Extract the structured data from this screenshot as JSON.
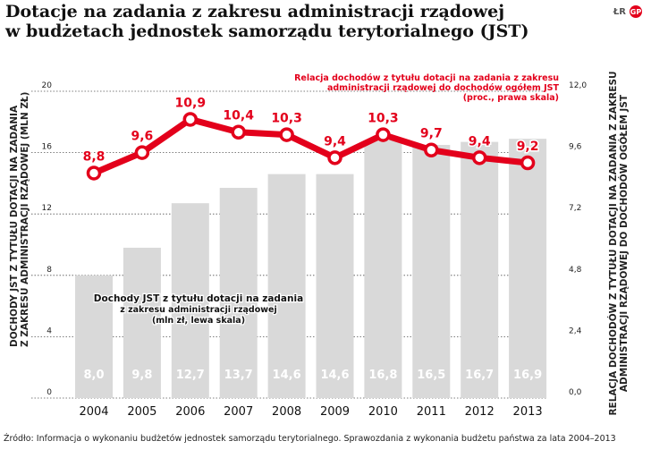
{
  "title_line1": "Dotacje na zadania z zakresu administracji rządowej",
  "title_line2": "w budżetach jednostek samorządu terytorialnego (JST)",
  "logo": {
    "text": "ŁR",
    "mark": "GP"
  },
  "source": "Źródło: Informacja o wykonaniu budżetów jednostek samorządu terytorialnego. Sprawozdania z wykonania budżetu państwa za lata 2004–2013",
  "left_axis_label": {
    "line1": "Dochody JST z tytułu dotacji na zadania",
    "line2": "z zakresu administracji rządowej (mln zł)"
  },
  "right_axis_label": {
    "line1": "Relacja dochodów z tytułu dotacji na zadania z zakresu",
    "line2": "administracji rządowej do dochodów ogółem JST"
  },
  "chart_data": {
    "type": "bar",
    "categories": [
      "2004",
      "2005",
      "2006",
      "2007",
      "2008",
      "2009",
      "2010",
      "2011",
      "2012",
      "2013"
    ],
    "left_ylim": [
      0,
      20
    ],
    "left_ticks": [
      "0",
      "4",
      "8",
      "12",
      "16",
      "20"
    ],
    "right_ylim": [
      0,
      12
    ],
    "right_ticks": [
      "0,0",
      "2,4",
      "4,8",
      "7,2",
      "9,6",
      "12,0"
    ],
    "series": [
      {
        "kind": "bar",
        "axis": "left",
        "values": [
          8.0,
          9.8,
          12.7,
          13.7,
          14.6,
          14.6,
          16.8,
          16.5,
          16.7,
          16.9
        ],
        "labels": [
          "8,0",
          "9,8",
          "12,7",
          "13,7",
          "14,6",
          "14,6",
          "16,8",
          "16,5",
          "16,7",
          "16,9"
        ],
        "color": "#d9d9d9",
        "legend_line1": "Dochody JST z tytułu dotacji na zadania",
        "legend_line2": "z zakresu administracji rządowej",
        "legend_line3": "(mln zł, lewa skala)"
      },
      {
        "kind": "line",
        "axis": "right",
        "values": [
          8.8,
          9.6,
          10.9,
          10.4,
          10.3,
          9.4,
          10.3,
          9.7,
          9.4,
          9.2
        ],
        "labels": [
          "8,8",
          "9,6",
          "10,9",
          "10,4",
          "10,3",
          "9,4",
          "10,3",
          "9,7",
          "9,4",
          "9,2"
        ],
        "color": "#e3001b",
        "legend_line1": "Relacja dochodów z tytułu dotacji na zadania z zakresu",
        "legend_line2": "administracji rządowej do dochodów ogółem JST",
        "legend_line3": "(proc., prawa skala)"
      }
    ],
    "grid": "dotted",
    "legend": "inline annotations"
  }
}
